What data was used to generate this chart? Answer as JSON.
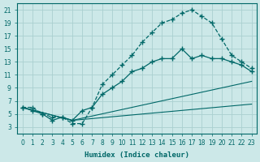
{
  "xlabel": "Humidex (Indice chaleur)",
  "bg_color": "#cce8e8",
  "grid_color": "#aad0d0",
  "line_color": "#006868",
  "xlim": [
    -0.5,
    23.5
  ],
  "ylim": [
    2,
    22
  ],
  "xticks": [
    0,
    1,
    2,
    3,
    4,
    5,
    6,
    7,
    8,
    9,
    10,
    11,
    12,
    13,
    14,
    15,
    16,
    17,
    18,
    19,
    20,
    21,
    22,
    23
  ],
  "yticks": [
    3,
    5,
    7,
    9,
    11,
    13,
    15,
    17,
    19,
    21
  ],
  "curve1_x": [
    0,
    1,
    2,
    3,
    4,
    5,
    6,
    7,
    8,
    9,
    10,
    11,
    12,
    13,
    14,
    15,
    16,
    17,
    18,
    19,
    20,
    21,
    22,
    23
  ],
  "curve1_y": [
    6.0,
    6.0,
    5.0,
    4.5,
    4.5,
    3.5,
    3.5,
    6.0,
    9.5,
    11.0,
    12.5,
    14.0,
    16.0,
    17.5,
    19.0,
    19.5,
    20.5,
    21.0,
    20.0,
    19.0,
    16.5,
    14.0,
    13.0,
    12.0
  ],
  "curve2_x": [
    0,
    1,
    2,
    3,
    4,
    5,
    6,
    7,
    8,
    9,
    10,
    11,
    12,
    13,
    14,
    15,
    16,
    17,
    18,
    19,
    20,
    21,
    22,
    23
  ],
  "curve2_y": [
    6.0,
    5.5,
    5.0,
    4.0,
    4.5,
    4.0,
    5.5,
    6.0,
    8.0,
    9.0,
    10.0,
    11.5,
    12.0,
    13.0,
    13.5,
    13.5,
    15.0,
    13.5,
    14.0,
    13.5,
    13.5,
    13.0,
    12.5,
    11.5
  ],
  "curve3_x": [
    0,
    5,
    23
  ],
  "curve3_y": [
    6.0,
    4.0,
    10.0
  ],
  "curve4_x": [
    0,
    5,
    23
  ],
  "curve4_y": [
    6.0,
    4.0,
    6.5
  ]
}
